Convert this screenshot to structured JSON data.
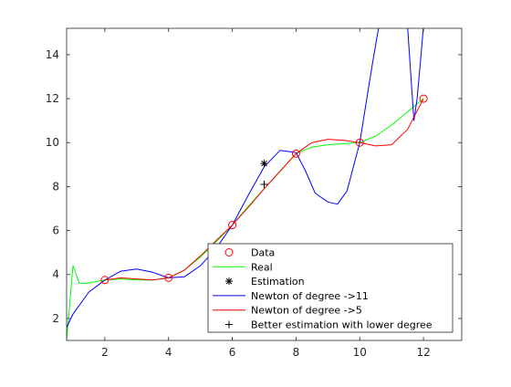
{
  "chart_data": {
    "type": "line",
    "title": "",
    "xlabel": "",
    "ylabel": "",
    "xlim": [
      0.8,
      13.2
    ],
    "ylim": [
      1.0,
      15.2
    ],
    "xticks": [
      2,
      4,
      6,
      8,
      10,
      12
    ],
    "yticks": [
      2,
      4,
      6,
      8,
      10,
      12,
      14
    ],
    "grid": false,
    "legend_position": "bottom-right",
    "legend": [
      {
        "label": "Data",
        "color": "#ff0000",
        "marker": "circle"
      },
      {
        "label": "Real",
        "color": "#00ff00",
        "marker": "line"
      },
      {
        "label": "Estimation",
        "color": "#000000",
        "marker": "asterisk"
      },
      {
        "label": "Newton of degree ->11",
        "color": "#0000ff",
        "marker": "line"
      },
      {
        "label": "Newton of degree ->5",
        "color": "#ff0000",
        "marker": "line"
      },
      {
        "label": "Better estimation with lower degree",
        "color": "#000000",
        "marker": "plus"
      }
    ],
    "series": [
      {
        "name": "Real",
        "kind": "line",
        "color": "#00ff00",
        "x": [
          0.8,
          1.0,
          1.2,
          1.4,
          1.6,
          2.0,
          2.5,
          3.0,
          3.5,
          4.0,
          4.5,
          5.0,
          5.5,
          6.0,
          6.5,
          7.0,
          7.5,
          8.0,
          8.5,
          9.0,
          9.5,
          10.0,
          10.5,
          11.0,
          11.5,
          12.0
        ],
        "y": [
          1.0,
          4.4,
          3.6,
          3.6,
          3.65,
          3.75,
          3.8,
          3.75,
          3.75,
          3.85,
          4.2,
          4.8,
          5.5,
          6.25,
          7.1,
          7.9,
          8.7,
          9.5,
          9.8,
          9.9,
          9.95,
          10.0,
          10.3,
          10.8,
          11.4,
          12.0
        ]
      },
      {
        "name": "Newton of degree ->11",
        "kind": "line",
        "color": "#0000ff",
        "x": [
          0.8,
          1.0,
          1.5,
          2.0,
          2.5,
          3.0,
          3.5,
          4.0,
          4.5,
          5.0,
          5.5,
          6.0,
          6.5,
          7.0,
          7.5,
          8.0,
          8.3,
          8.6,
          9.0,
          9.3,
          9.6,
          10.0,
          10.2,
          10.4,
          10.6,
          11.5,
          11.7,
          11.8,
          11.9,
          12.0
        ],
        "y": [
          1.6,
          2.2,
          3.2,
          3.75,
          4.15,
          4.25,
          4.1,
          3.85,
          3.9,
          4.4,
          5.2,
          6.25,
          7.6,
          8.9,
          9.65,
          9.55,
          8.7,
          7.7,
          7.3,
          7.2,
          7.8,
          10.0,
          11.8,
          13.6,
          15.3,
          15.3,
          11.0,
          12.0,
          13.6,
          15.3
        ]
      },
      {
        "name": "Newton of degree ->5",
        "kind": "line",
        "color": "#ff0000",
        "x": [
          2.0,
          2.5,
          3.0,
          3.5,
          4.0,
          4.5,
          5.0,
          5.5,
          6.0,
          6.5,
          7.0,
          7.5,
          8.0,
          8.5,
          9.0,
          9.5,
          10.0,
          10.5,
          11.0,
          11.5,
          12.0
        ],
        "y": [
          3.75,
          3.85,
          3.8,
          3.75,
          3.85,
          4.2,
          4.85,
          5.55,
          6.25,
          7.05,
          7.9,
          8.7,
          9.5,
          10.0,
          10.15,
          10.1,
          10.0,
          9.85,
          9.9,
          10.6,
          12.0
        ]
      },
      {
        "name": "Data",
        "kind": "marker",
        "marker": "circle",
        "color": "#ff0000",
        "x": [
          2,
          4,
          6,
          8,
          10,
          12
        ],
        "y": [
          3.75,
          3.85,
          6.25,
          9.5,
          10.0,
          12.0
        ]
      },
      {
        "name": "Estimation",
        "kind": "marker",
        "marker": "asterisk",
        "color": "#000000",
        "x": [
          7
        ],
        "y": [
          9.05
        ]
      },
      {
        "name": "Better estimation with lower degree",
        "kind": "marker",
        "marker": "plus",
        "color": "#000000",
        "x": [
          7
        ],
        "y": [
          8.1
        ]
      }
    ]
  }
}
